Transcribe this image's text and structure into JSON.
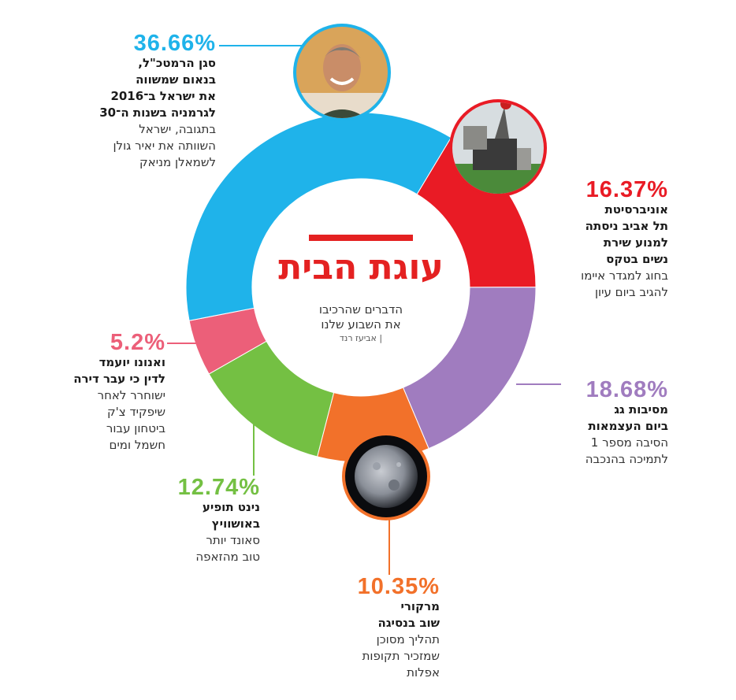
{
  "chart_data": {
    "type": "pie",
    "style": "donut",
    "categories": [
      "אוניברסיטת תל אביב",
      "מסיבות גג",
      "מרקורי",
      "נינט",
      "ואנונו",
      "סגן הרמטכ\"ל"
    ],
    "values": [
      16.37,
      18.68,
      10.35,
      12.74,
      5.2,
      36.66
    ],
    "colors": [
      "#e91b25",
      "#a07cbf",
      "#f2712a",
      "#74c043",
      "#ec5f79",
      "#1fb3ea"
    ],
    "labels": [
      "16.37%",
      "18.68%",
      "10.35%",
      "12.74%",
      "5.2%",
      "36.66%"
    ]
  },
  "center": {
    "title": "עוגת הבית",
    "line1": "הדברים שהרכיבו",
    "line2": "את השבוע שלנו",
    "credit": "| אביעז רנד"
  },
  "callouts": {
    "blue": {
      "pct": "36.66%",
      "head": [
        "סגן הרמטכ\"ל,",
        "בנאום שמשווה",
        "את ישראל ב־2016",
        "לגרמניה בשנות ה־30"
      ],
      "sub": [
        "בתגובה, ישראל",
        "השוותה את יאיר גולן",
        "לשמאלן מניאק"
      ]
    },
    "red": {
      "pct": "16.37%",
      "head": [
        "אוניברסיטת",
        "תל אביב ניסתה",
        "למנוע שירת",
        "נשים בטקס"
      ],
      "sub": [
        "בחוג למגדר איימו",
        "להגיב ביום עיון"
      ]
    },
    "purple": {
      "pct": "18.68%",
      "head": [
        "מסיבות גג",
        "ביום העצמאות"
      ],
      "sub": [
        "הסיבה מספר 1",
        "לתמיכה בהנכבה"
      ]
    },
    "orange": {
      "pct": "10.35%",
      "head": [
        "מרקורי",
        "שוב בנסיגה"
      ],
      "sub": [
        "תהליך מסוכן",
        "שמזכיר תקופות",
        "אפלות"
      ]
    },
    "green": {
      "pct": "12.74%",
      "head": [
        "נינט תופיע",
        "באושוויץ"
      ],
      "sub": [
        "סאונד יותר",
        "טוב מהזאפה"
      ]
    },
    "pink": {
      "pct": "5.2%",
      "head": [
        "ואנונו יועמד",
        "לדין כי עבר דירה"
      ],
      "sub": [
        "ישוחרר לאחר",
        "שיפקיד צ'ק",
        "ביטחון עבור",
        "חשמל ומים"
      ]
    }
  }
}
